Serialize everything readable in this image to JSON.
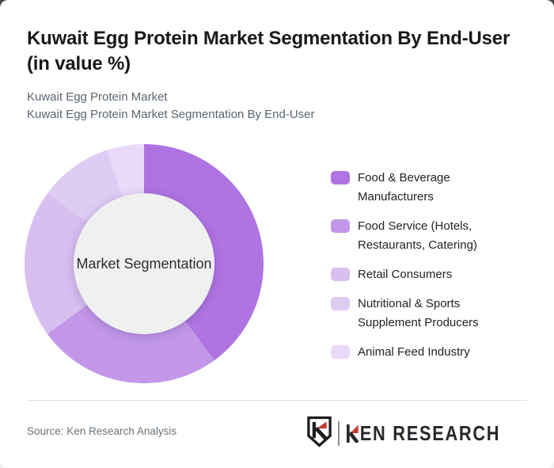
{
  "background": {
    "top_bar_color": "#47474b",
    "page_color": "#f1f2f4",
    "card_color": "#ffffff"
  },
  "header": {
    "title": "Kuwait Egg Protein Market Segmentation By End-User (in value %)",
    "subtitle_line1": "Kuwait Egg Protein Market",
    "subtitle_line2": "Kuwait Egg Protein Market Segmentation By End-User"
  },
  "chart_data": {
    "type": "pie",
    "subtype": "donut",
    "title": "Kuwait Egg Protein Market Segmentation By End-User (in value %)",
    "center_label": "Market Segmentation",
    "unit": "value %",
    "categories": [
      "Food & Beverage Manufacturers",
      "Food Service (Hotels, Restaurants, Catering)",
      "Retail Consumers",
      "Nutritional & Sports Supplement Producers",
      "Animal Feed Industry"
    ],
    "values": [
      40,
      25,
      20,
      10,
      5
    ],
    "values_estimated_from_arc_angles": true,
    "colors": [
      "#af74e2",
      "#c297e8",
      "#d7bff0",
      "#dfccf3",
      "#e9dbf8"
    ],
    "start_angle_deg": 0,
    "direction": "clockwise",
    "legend_position": "right",
    "center_fill": "#f0f0f0"
  },
  "footer": {
    "source": "Source: Ken Research Analysis",
    "logo": {
      "emblem_letter": "K",
      "wordmark_first_letter": "K",
      "wordmark_rest": "EN RESEARCH",
      "red": "#c23b30",
      "dark": "#26282c"
    }
  }
}
